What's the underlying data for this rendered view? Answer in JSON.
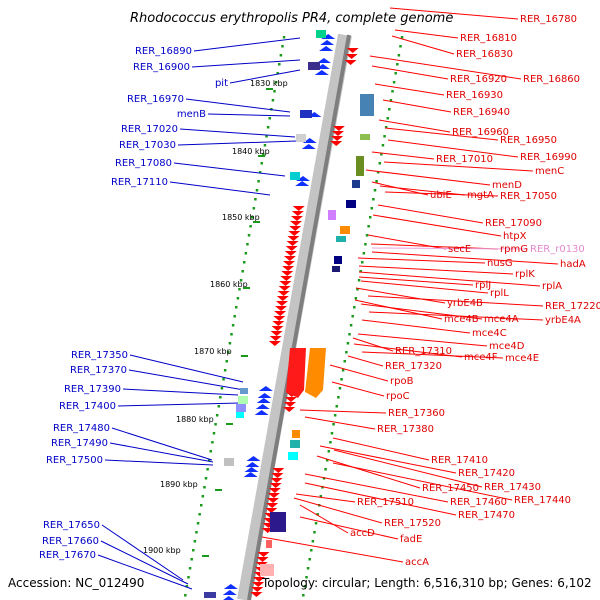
{
  "title": "Rhodococcus erythropolis PR4, complete genome",
  "footer": {
    "accession": "Accession: NC_012490",
    "topology": "Topology: circular; Length: 6,516,310 bp; Genes: 6,102"
  },
  "colors": {
    "left_label": "#0000c8",
    "right_label": "#e00000",
    "pink_label": "#e48ad0",
    "forward_arrow": "#1030ff",
    "reverse_arrow": "#ff0000",
    "tick_dot": "#1a9a1a",
    "backbone": "#8c8c8c"
  },
  "ticks": [
    "1830 kbp",
    "1840 kbp",
    "1850 kbp",
    "1860 kbp",
    "1870 kbp",
    "1880 kbp",
    "1890 kbp",
    "1900 kbp"
  ],
  "left_labels": [
    "RER_16890",
    "RER_16900",
    "pit",
    "RER_16970",
    "menB",
    "RER_17020",
    "RER_17030",
    "RER_17080",
    "RER_17110",
    "RER_17350",
    "RER_17370",
    "RER_17390",
    "RER_17400",
    "RER_17480",
    "RER_17490",
    "RER_17500",
    "RER_17650",
    "RER_17660",
    "RER_17670"
  ],
  "right_labels": [
    "RER_16780",
    "RER_16810",
    "RER_16830",
    "RER_16920",
    "RER_16860",
    "RER_16930",
    "RER_16940",
    "RER_16960",
    "RER_16950",
    "RER_16990",
    "RER_17010",
    "menC",
    "menD",
    "ubiE",
    "mgtA",
    "RER_17050",
    "RER_17090",
    "htpX",
    "secE",
    "rpmG",
    "RER_r0130",
    "hadA",
    "nusG",
    "rplK",
    "rplA",
    "rplJ",
    "rplL",
    "yrbE4B",
    "RER_17220",
    "mce4B",
    "mce4A",
    "yrbE4A",
    "mce4C",
    "mce4D",
    "RER_17310",
    "mce4F",
    "mce4E",
    "RER_17320",
    "rpoB",
    "rpoC",
    "RER_17360",
    "RER_17380",
    "RER_17410",
    "RER_17420",
    "RER_17430",
    "RER_17450",
    "RER_17440",
    "RER_17460",
    "RER_17470",
    "RER_17510",
    "RER_17520",
    "accD",
    "fadE",
    "accA"
  ]
}
